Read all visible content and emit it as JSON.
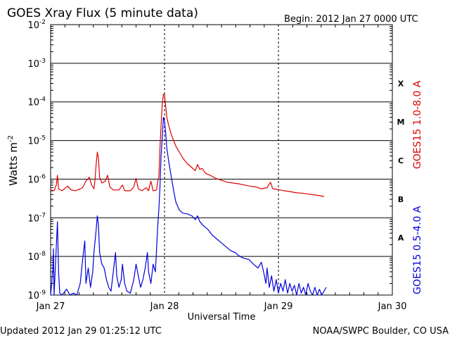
{
  "chart_data": {
    "type": "line",
    "title": "GOES Xray Flux (5 minute data)",
    "begin_label": "Begin:  2012 Jan 27 0000 UTC",
    "xlabel": "Universal Time",
    "ylabel_main": "Watts m",
    "ylabel_exp": "-2",
    "x_unit": "days since 2012 Jan 27 0000 UTC",
    "xlim": [
      0,
      3
    ],
    "x_ticks": [
      {
        "value": 0,
        "label": "Jan 27"
      },
      {
        "value": 1,
        "label": "Jan 28"
      },
      {
        "value": 2,
        "label": "Jan 29"
      },
      {
        "value": 3,
        "label": "Jan 30"
      }
    ],
    "y_scale": "log",
    "ylim_exp": [
      -9,
      -2
    ],
    "y_ticks": [
      {
        "exp": -9,
        "base": "10",
        "sup": "-9"
      },
      {
        "exp": -8,
        "base": "10",
        "sup": "-8"
      },
      {
        "exp": -7,
        "base": "10",
        "sup": "-7"
      },
      {
        "exp": -6,
        "base": "10",
        "sup": "-6"
      },
      {
        "exp": -5,
        "base": "10",
        "sup": "-5"
      },
      {
        "exp": -4,
        "base": "10",
        "sup": "-4"
      },
      {
        "exp": -3,
        "base": "10",
        "sup": "-3"
      },
      {
        "exp": -2,
        "base": "10",
        "sup": "-2"
      }
    ],
    "flare_classes": [
      {
        "label": "A",
        "exp_center": -7.5
      },
      {
        "label": "B",
        "exp_center": -6.5
      },
      {
        "label": "C",
        "exp_center": -5.5
      },
      {
        "label": "M",
        "exp_center": -4.5
      },
      {
        "label": "X",
        "exp_center": -3.5
      }
    ],
    "series": [
      {
        "name": "GOES15 1.0-8.0 A",
        "color": "#dd0000",
        "points": [
          [
            0.0,
            -6.28
          ],
          [
            0.03,
            -6.3
          ],
          [
            0.05,
            -6.15
          ],
          [
            0.06,
            -5.9
          ],
          [
            0.07,
            -6.25
          ],
          [
            0.1,
            -6.3
          ],
          [
            0.15,
            -6.18
          ],
          [
            0.18,
            -6.28
          ],
          [
            0.22,
            -6.3
          ],
          [
            0.28,
            -6.22
          ],
          [
            0.31,
            -6.05
          ],
          [
            0.34,
            -5.95
          ],
          [
            0.36,
            -6.15
          ],
          [
            0.38,
            -6.25
          ],
          [
            0.39,
            -6.0
          ],
          [
            0.4,
            -5.6
          ],
          [
            0.41,
            -5.3
          ],
          [
            0.42,
            -5.45
          ],
          [
            0.43,
            -5.95
          ],
          [
            0.45,
            -6.1
          ],
          [
            0.48,
            -6.05
          ],
          [
            0.5,
            -5.9
          ],
          [
            0.52,
            -6.2
          ],
          [
            0.55,
            -6.28
          ],
          [
            0.6,
            -6.28
          ],
          [
            0.63,
            -6.15
          ],
          [
            0.65,
            -6.3
          ],
          [
            0.7,
            -6.3
          ],
          [
            0.73,
            -6.2
          ],
          [
            0.75,
            -5.98
          ],
          [
            0.77,
            -6.25
          ],
          [
            0.8,
            -6.3
          ],
          [
            0.84,
            -6.22
          ],
          [
            0.86,
            -6.3
          ],
          [
            0.88,
            -6.05
          ],
          [
            0.9,
            -6.3
          ],
          [
            0.93,
            -6.28
          ],
          [
            0.94,
            -6.05
          ],
          [
            0.95,
            -5.95
          ],
          [
            0.96,
            -5.2
          ],
          [
            0.97,
            -4.6
          ],
          [
            0.98,
            -4.05
          ],
          [
            0.99,
            -3.8
          ],
          [
            1.0,
            -3.82
          ],
          [
            1.01,
            -4.1
          ],
          [
            1.02,
            -4.4
          ],
          [
            1.04,
            -4.65
          ],
          [
            1.06,
            -4.85
          ],
          [
            1.08,
            -5.0
          ],
          [
            1.1,
            -5.15
          ],
          [
            1.13,
            -5.3
          ],
          [
            1.16,
            -5.45
          ],
          [
            1.2,
            -5.6
          ],
          [
            1.24,
            -5.7
          ],
          [
            1.27,
            -5.78
          ],
          [
            1.29,
            -5.62
          ],
          [
            1.31,
            -5.75
          ],
          [
            1.33,
            -5.72
          ],
          [
            1.36,
            -5.85
          ],
          [
            1.4,
            -5.9
          ],
          [
            1.45,
            -5.98
          ],
          [
            1.5,
            -6.03
          ],
          [
            1.55,
            -6.08
          ],
          [
            1.6,
            -6.1
          ],
          [
            1.65,
            -6.12
          ],
          [
            1.7,
            -6.15
          ],
          [
            1.75,
            -6.18
          ],
          [
            1.8,
            -6.2
          ],
          [
            1.85,
            -6.25
          ],
          [
            1.9,
            -6.22
          ],
          [
            1.93,
            -6.08
          ],
          [
            1.95,
            -6.25
          ],
          [
            2.0,
            -6.27
          ],
          [
            2.05,
            -6.3
          ],
          [
            2.1,
            -6.32
          ],
          [
            2.15,
            -6.35
          ],
          [
            2.2,
            -6.36
          ],
          [
            2.25,
            -6.38
          ],
          [
            2.3,
            -6.4
          ],
          [
            2.35,
            -6.42
          ],
          [
            2.4,
            -6.45
          ]
        ]
      },
      {
        "name": "GOES15 0.5-4.0 A",
        "color": "#0000dd",
        "points": [
          [
            0.0,
            -9.0
          ],
          [
            0.01,
            -8.7
          ],
          [
            0.02,
            -8.3
          ],
          [
            0.025,
            -7.8
          ],
          [
            0.03,
            -9.0
          ],
          [
            0.06,
            -7.1
          ],
          [
            0.07,
            -8.4
          ],
          [
            0.08,
            -8.95
          ],
          [
            0.1,
            -9.0
          ],
          [
            0.14,
            -8.85
          ],
          [
            0.17,
            -9.0
          ],
          [
            0.2,
            -8.95
          ],
          [
            0.23,
            -9.0
          ],
          [
            0.26,
            -8.7
          ],
          [
            0.28,
            -8.1
          ],
          [
            0.3,
            -7.6
          ],
          [
            0.31,
            -8.7
          ],
          [
            0.33,
            -8.3
          ],
          [
            0.35,
            -8.8
          ],
          [
            0.37,
            -8.4
          ],
          [
            0.38,
            -7.9
          ],
          [
            0.4,
            -7.3
          ],
          [
            0.41,
            -6.95
          ],
          [
            0.42,
            -7.2
          ],
          [
            0.43,
            -7.9
          ],
          [
            0.45,
            -8.2
          ],
          [
            0.47,
            -8.3
          ],
          [
            0.49,
            -8.6
          ],
          [
            0.51,
            -8.8
          ],
          [
            0.53,
            -8.9
          ],
          [
            0.55,
            -8.4
          ],
          [
            0.57,
            -7.9
          ],
          [
            0.58,
            -8.5
          ],
          [
            0.6,
            -8.8
          ],
          [
            0.62,
            -8.6
          ],
          [
            0.63,
            -8.2
          ],
          [
            0.65,
            -8.7
          ],
          [
            0.67,
            -8.9
          ],
          [
            0.7,
            -8.95
          ],
          [
            0.73,
            -8.6
          ],
          [
            0.75,
            -8.2
          ],
          [
            0.77,
            -8.5
          ],
          [
            0.79,
            -8.8
          ],
          [
            0.81,
            -8.6
          ],
          [
            0.83,
            -8.3
          ],
          [
            0.85,
            -7.9
          ],
          [
            0.86,
            -8.4
          ],
          [
            0.88,
            -8.7
          ],
          [
            0.9,
            -8.2
          ],
          [
            0.92,
            -8.4
          ],
          [
            0.93,
            -7.8
          ],
          [
            0.94,
            -7.2
          ],
          [
            0.95,
            -6.8
          ],
          [
            0.96,
            -6.2
          ],
          [
            0.97,
            -5.4
          ],
          [
            0.98,
            -4.9
          ],
          [
            0.99,
            -4.4
          ],
          [
            1.0,
            -4.5
          ],
          [
            1.01,
            -4.8
          ],
          [
            1.02,
            -5.2
          ],
          [
            1.04,
            -5.6
          ],
          [
            1.06,
            -5.95
          ],
          [
            1.08,
            -6.3
          ],
          [
            1.1,
            -6.6
          ],
          [
            1.13,
            -6.8
          ],
          [
            1.16,
            -6.88
          ],
          [
            1.2,
            -6.9
          ],
          [
            1.24,
            -6.95
          ],
          [
            1.27,
            -7.05
          ],
          [
            1.29,
            -6.95
          ],
          [
            1.31,
            -7.1
          ],
          [
            1.34,
            -7.2
          ],
          [
            1.38,
            -7.3
          ],
          [
            1.42,
            -7.45
          ],
          [
            1.46,
            -7.55
          ],
          [
            1.5,
            -7.65
          ],
          [
            1.54,
            -7.75
          ],
          [
            1.58,
            -7.85
          ],
          [
            1.62,
            -7.9
          ],
          [
            1.66,
            -8.0
          ],
          [
            1.7,
            -8.05
          ],
          [
            1.74,
            -8.08
          ],
          [
            1.78,
            -8.2
          ],
          [
            1.82,
            -8.3
          ],
          [
            1.85,
            -8.15
          ],
          [
            1.87,
            -8.4
          ],
          [
            1.89,
            -8.7
          ],
          [
            1.9,
            -8.3
          ],
          [
            1.92,
            -8.8
          ],
          [
            1.94,
            -8.5
          ],
          [
            1.96,
            -8.9
          ],
          [
            1.98,
            -8.6
          ],
          [
            2.0,
            -8.95
          ],
          [
            2.02,
            -8.7
          ],
          [
            2.04,
            -8.9
          ],
          [
            2.06,
            -8.6
          ],
          [
            2.08,
            -8.95
          ],
          [
            2.1,
            -8.7
          ],
          [
            2.12,
            -8.9
          ],
          [
            2.14,
            -8.75
          ],
          [
            2.16,
            -9.0
          ],
          [
            2.18,
            -8.7
          ],
          [
            2.2,
            -8.95
          ],
          [
            2.22,
            -8.8
          ],
          [
            2.24,
            -9.0
          ],
          [
            2.26,
            -8.7
          ],
          [
            2.28,
            -8.9
          ],
          [
            2.3,
            -9.0
          ],
          [
            2.32,
            -8.8
          ],
          [
            2.34,
            -9.0
          ],
          [
            2.36,
            -8.85
          ],
          [
            2.38,
            -9.0
          ],
          [
            2.4,
            -8.9
          ],
          [
            2.42,
            -8.8
          ]
        ]
      }
    ]
  },
  "footer": {
    "updated": "Updated 2012 Jan 29 01:25:12 UTC",
    "credit": "NOAA/SWPC Boulder, CO USA"
  }
}
